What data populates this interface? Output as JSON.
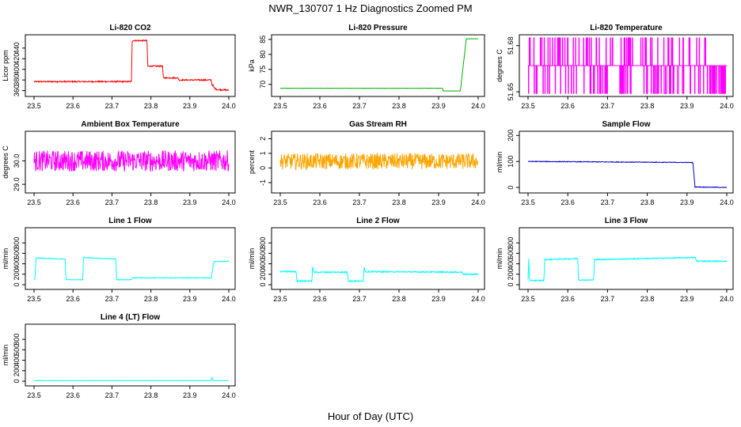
{
  "title": "NWR_130707  1 Hz Diagnostics Zoomed PM",
  "xlabel": "Hour of Day (UTC)",
  "chart_data": [
    {
      "type": "line",
      "title": "Li-820 CO2",
      "ylabel": "Licor ppm",
      "color": "#ff0000",
      "xlim": [
        23.5,
        24.0
      ],
      "ylim": [
        352,
        462
      ],
      "x_ticks": [
        "23.5",
        "23.6",
        "23.7",
        "23.8",
        "23.9",
        "24.0"
      ],
      "y_ticks": [
        "360",
        "380",
        "400",
        "420",
        "440"
      ],
      "noise": 1.2,
      "series": [
        {
          "x": [
            23.5,
            23.75,
            23.752,
            23.79,
            23.792,
            23.83,
            23.832,
            23.87,
            23.872,
            23.955,
            23.957,
            23.96,
            23.962,
            23.97,
            24.0
          ],
          "y": [
            377,
            377,
            454,
            454,
            406,
            406,
            384,
            384,
            380,
            380,
            370,
            370,
            365,
            362,
            361
          ]
        }
      ]
    },
    {
      "type": "line",
      "title": "Li-820 Pressure",
      "ylabel": "kPa",
      "color": "#00b000",
      "xlim": [
        23.5,
        24.0
      ],
      "ylim": [
        66.5,
        86
      ],
      "x_ticks": [
        "23.5",
        "23.6",
        "23.7",
        "23.8",
        "23.9",
        "24.0"
      ],
      "y_ticks": [
        "70",
        "75",
        "80",
        "85"
      ],
      "noise": 0.05,
      "series": [
        {
          "x": [
            23.5,
            23.91,
            23.912,
            23.955,
            23.97,
            23.975,
            24.0
          ],
          "y": [
            68.7,
            68.7,
            67.8,
            67.8,
            85.2,
            85.2,
            85.2
          ]
        }
      ]
    },
    {
      "type": "line",
      "title": "Li-820 Temperature",
      "ylabel": "degrees C",
      "color": "#ff00ff",
      "xlim": [
        23.5,
        24.0
      ],
      "ylim": [
        51.648,
        51.686
      ],
      "x_ticks": [
        "23.5",
        "23.6",
        "23.7",
        "23.8",
        "23.9",
        "24.0"
      ],
      "y_ticks": [
        "51.65",
        "51.68"
      ],
      "series": [
        {
          "levels": [
            51.649,
            51.667,
            51.685
          ],
          "base": 51.667
        }
      ]
    },
    {
      "type": "line",
      "title": "Ambient Box Temperature",
      "ylabel": "degrees C",
      "color": "#ff00ff",
      "xlim": [
        23.5,
        24.0
      ],
      "ylim": [
        28.7,
        31.2
      ],
      "x_ticks": [
        "23.5",
        "23.6",
        "23.7",
        "23.8",
        "23.9",
        "24.0"
      ],
      "y_ticks": [
        "29.0",
        "30.0"
      ],
      "noise": 0.45,
      "series": [
        {
          "x": [
            23.5,
            24.0
          ],
          "y": [
            30.0,
            30.0
          ]
        }
      ]
    },
    {
      "type": "line",
      "title": "Gas Stream RH",
      "ylabel": "percent",
      "color": "#ffa500",
      "xlim": [
        23.5,
        24.0
      ],
      "ylim": [
        -1.6,
        2.4
      ],
      "x_ticks": [
        "23.5",
        "23.6",
        "23.7",
        "23.8",
        "23.9",
        "24.0"
      ],
      "y_ticks": [
        "-1",
        "0",
        "1",
        "2"
      ],
      "noise": 0.55,
      "series": [
        {
          "x": [
            23.5,
            24.0
          ],
          "y": [
            0.45,
            0.45
          ]
        }
      ]
    },
    {
      "type": "line",
      "title": "Sample Flow",
      "ylabel": "ml/min",
      "color": "#0000cc",
      "xlim": [
        23.5,
        24.0
      ],
      "ylim": [
        -15,
        210
      ],
      "x_ticks": [
        "23.5",
        "23.6",
        "23.7",
        "23.8",
        "23.9",
        "24.0"
      ],
      "y_ticks": [
        "0",
        "100",
        "200"
      ],
      "noise": 1.2,
      "series": [
        {
          "x": [
            23.5,
            23.91,
            23.915,
            23.92,
            24.0
          ],
          "y": [
            100,
            96,
            96,
            2,
            0
          ]
        }
      ]
    },
    {
      "type": "line",
      "title": "Line 1 Flow",
      "ylabel": "ml/min",
      "color": "#00ffff",
      "xlim": [
        23.5,
        24.0
      ],
      "ylim": [
        -60,
        1060
      ],
      "x_ticks": [
        "23.5",
        "23.6",
        "23.7",
        "23.8",
        "23.9",
        "24.0"
      ],
      "y_ticks": [
        "0",
        "200",
        "400",
        "600",
        "800"
      ],
      "noise": 6,
      "series": [
        {
          "x": [
            23.5,
            23.502,
            23.505,
            23.58,
            23.582,
            23.625,
            23.627,
            23.71,
            23.712,
            23.75,
            23.752,
            23.955,
            23.962,
            23.965,
            24.0
          ],
          "y": [
            100,
            100,
            510,
            490,
            95,
            95,
            520,
            490,
            95,
            95,
            130,
            130,
            450,
            440,
            450
          ]
        }
      ]
    },
    {
      "type": "line",
      "title": "Line 2 Flow",
      "ylabel": "ml/min",
      "color": "#00ffff",
      "xlim": [
        23.5,
        24.0
      ],
      "ylim": [
        -60,
        1060
      ],
      "x_ticks": [
        "23.5",
        "23.6",
        "23.7",
        "23.8",
        "23.9",
        "24.0"
      ],
      "y_ticks": [
        "0",
        "200",
        "400",
        "600",
        "800"
      ],
      "noise": 12,
      "series": [
        {
          "x": [
            23.5,
            23.54,
            23.542,
            23.58,
            23.582,
            23.584,
            23.67,
            23.672,
            23.71,
            23.712,
            23.714,
            23.96,
            23.962,
            24.0
          ],
          "y": [
            250,
            250,
            70,
            70,
            380,
            240,
            240,
            70,
            70,
            380,
            250,
            240,
            200,
            200
          ]
        }
      ]
    },
    {
      "type": "line",
      "title": "Line 3 Flow",
      "ylabel": "ml/min",
      "color": "#00ffff",
      "xlim": [
        23.5,
        24.0
      ],
      "ylim": [
        -60,
        1060
      ],
      "x_ticks": [
        "23.5",
        "23.6",
        "23.7",
        "23.8",
        "23.9",
        "24.0"
      ],
      "y_ticks": [
        "0",
        "200",
        "400",
        "600",
        "800"
      ],
      "noise": 10,
      "series": [
        {
          "x": [
            23.5,
            23.502,
            23.504,
            23.54,
            23.542,
            23.625,
            23.627,
            23.665,
            23.667,
            23.92,
            23.925,
            24.0
          ],
          "y": [
            100,
            520,
            80,
            80,
            480,
            500,
            90,
            90,
            480,
            520,
            450,
            450
          ]
        }
      ]
    },
    {
      "type": "line",
      "title": "Line 4 (LT) Flow",
      "ylabel": "ml/min",
      "color": "#00ffff",
      "xlim": [
        23.5,
        24.0
      ],
      "ylim": [
        -60,
        1060
      ],
      "x_ticks": [
        "23.5",
        "23.6",
        "23.7",
        "23.8",
        "23.9",
        "24.0"
      ],
      "y_ticks": [
        "0",
        "200",
        "400",
        "600",
        "800"
      ],
      "noise": 2,
      "series": [
        {
          "x": [
            23.5,
            23.955,
            23.957,
            23.959,
            23.961,
            24.0
          ],
          "y": [
            10,
            10,
            80,
            20,
            10,
            10
          ]
        }
      ]
    }
  ]
}
